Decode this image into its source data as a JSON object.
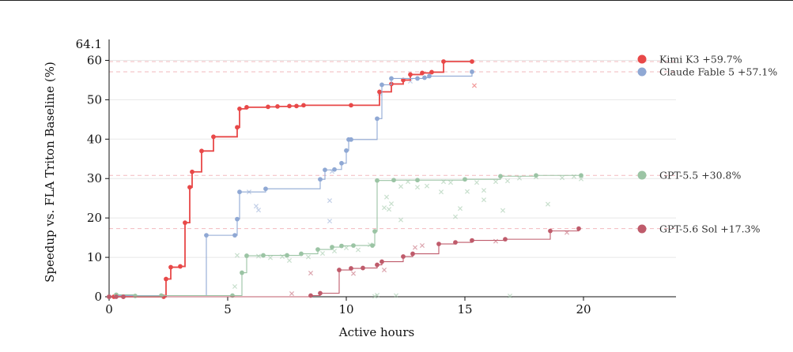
{
  "chart_data": {
    "type": "line",
    "xlabel": "Active hours",
    "ylabel": "Speedup vs. FLA Triton Baseline (%)",
    "xlim": [
      0,
      23.9
    ],
    "ylim": [
      0,
      64.1
    ],
    "ymax_label": "64.1",
    "x_ticks": [
      0,
      5,
      10,
      15,
      20
    ],
    "y_ticks": [
      0,
      10,
      20,
      30,
      40,
      50,
      60
    ],
    "grid": "horizontal",
    "legend_placement": "right",
    "series": [
      {
        "name": "Kimi K3",
        "label": "Kimi K3 +59.7%",
        "final": 59.7,
        "color": "#e84848",
        "line_width": 1.8,
        "steps": [
          [
            0,
            0
          ],
          [
            0.2,
            0
          ],
          [
            0.6,
            0
          ],
          [
            2.3,
            0
          ],
          [
            2.4,
            4.5
          ],
          [
            2.6,
            7.5
          ],
          [
            3.0,
            7.7
          ],
          [
            3.2,
            18.8
          ],
          [
            3.4,
            27.8
          ],
          [
            3.5,
            31.7
          ],
          [
            3.9,
            37.0
          ],
          [
            4.4,
            40.6
          ],
          [
            5.4,
            43.0
          ],
          [
            5.5,
            47.7
          ],
          [
            5.8,
            48.1
          ],
          [
            6.7,
            48.2
          ],
          [
            7.1,
            48.3
          ],
          [
            7.6,
            48.4
          ],
          [
            7.9,
            48.4
          ],
          [
            8.2,
            48.6
          ],
          [
            10.2,
            48.6
          ],
          [
            11.4,
            52.0
          ],
          [
            11.9,
            54.0
          ],
          [
            12.4,
            55.0
          ],
          [
            12.7,
            56.4
          ],
          [
            13.2,
            56.8
          ],
          [
            13.6,
            57.0
          ],
          [
            14.1,
            59.7
          ],
          [
            15.3,
            59.7
          ]
        ],
        "trials": [
          [
            15.4,
            53.6
          ]
        ]
      },
      {
        "name": "Claude Fable 5",
        "label": "Claude Fable 5 +57.1%",
        "final": 57.1,
        "color": "#8fa8d4",
        "line_width": 1.1,
        "steps": [
          [
            0,
            0
          ],
          [
            0.3,
            0.3
          ],
          [
            4.1,
            15.6
          ],
          [
            5.3,
            15.6
          ],
          [
            5.4,
            19.7
          ],
          [
            5.5,
            26.6
          ],
          [
            6.6,
            27.4
          ],
          [
            8.9,
            29.8
          ],
          [
            9.1,
            32.2
          ],
          [
            9.5,
            32.3
          ],
          [
            9.8,
            33.9
          ],
          [
            10.0,
            37.1
          ],
          [
            10.1,
            39.9
          ],
          [
            10.2,
            39.9
          ],
          [
            11.3,
            45.2
          ],
          [
            11.5,
            53.8
          ],
          [
            11.9,
            55.4
          ],
          [
            13.0,
            55.4
          ],
          [
            13.3,
            55.6
          ],
          [
            13.5,
            56.0
          ],
          [
            15.3,
            57.1
          ]
        ],
        "trials": [
          [
            5.9,
            26.6
          ],
          [
            6.2,
            23.0
          ],
          [
            6.3,
            22.0
          ],
          [
            9.4,
            31.8
          ],
          [
            9.3,
            24.4
          ],
          [
            9.3,
            19.2
          ],
          [
            12.7,
            54.7
          ],
          [
            11.4,
            51.6
          ]
        ]
      },
      {
        "name": "GPT-5.5",
        "label": "GPT-5.5 +30.8%",
        "final": 30.8,
        "color": "#9bc4a4",
        "line_width": 1.1,
        "steps": [
          [
            0,
            0
          ],
          [
            0.3,
            0.5
          ],
          [
            1.1,
            0.2
          ],
          [
            2.2,
            0.3
          ],
          [
            5.2,
            0.3
          ],
          [
            5.6,
            6.1
          ],
          [
            5.8,
            10.4
          ],
          [
            6.5,
            10.5
          ],
          [
            7.5,
            10.5
          ],
          [
            8.1,
            10.9
          ],
          [
            8.8,
            12.0
          ],
          [
            9.4,
            12.6
          ],
          [
            9.8,
            12.9
          ],
          [
            10.3,
            13.0
          ],
          [
            11.1,
            13.0
          ],
          [
            11.2,
            16.6
          ],
          [
            11.3,
            29.5
          ],
          [
            12.0,
            29.6
          ],
          [
            13.0,
            29.6
          ],
          [
            15.0,
            29.8
          ],
          [
            16.5,
            30.6
          ],
          [
            18.0,
            30.8
          ],
          [
            19.9,
            30.8
          ]
        ],
        "trials": [
          [
            5.4,
            10.5
          ],
          [
            5.3,
            2.6
          ],
          [
            6.3,
            10.3
          ],
          [
            6.8,
            9.9
          ],
          [
            7.3,
            10.2
          ],
          [
            7.6,
            9.2
          ],
          [
            8.4,
            10.1
          ],
          [
            9.0,
            11.0
          ],
          [
            9.5,
            11.6
          ],
          [
            10.0,
            12.4
          ],
          [
            10.5,
            11.9
          ],
          [
            11.0,
            13.2
          ],
          [
            11.6,
            22.6
          ],
          [
            11.8,
            22.2
          ],
          [
            11.9,
            23.6
          ],
          [
            11.7,
            25.3
          ],
          [
            12.3,
            28.0
          ],
          [
            12.3,
            19.5
          ],
          [
            12.6,
            29.2
          ],
          [
            13.0,
            27.8
          ],
          [
            13.4,
            28.1
          ],
          [
            14.0,
            26.6
          ],
          [
            14.1,
            29.2
          ],
          [
            14.4,
            29.0
          ],
          [
            14.6,
            20.3
          ],
          [
            14.8,
            22.4
          ],
          [
            15.1,
            26.7
          ],
          [
            15.5,
            29.0
          ],
          [
            15.8,
            27.0
          ],
          [
            16.3,
            29.2
          ],
          [
            15.8,
            24.6
          ],
          [
            16.6,
            21.9
          ],
          [
            16.8,
            29.4
          ],
          [
            17.3,
            30.1
          ],
          [
            18.5,
            23.5
          ],
          [
            18.0,
            30.4
          ],
          [
            19.1,
            30.2
          ],
          [
            19.6,
            30.5
          ],
          [
            19.9,
            29.9
          ],
          [
            11.2,
            0.1
          ],
          [
            11.3,
            0.4
          ],
          [
            12.1,
            0.3
          ],
          [
            16.9,
            0.2
          ]
        ]
      },
      {
        "name": "GPT-5.6 Sol",
        "label": "GPT-5.6 Sol +17.3%",
        "final": 17.3,
        "color": "#bf5b6b",
        "line_width": 1.1,
        "steps": [
          [
            0,
            0
          ],
          [
            0.3,
            0
          ],
          [
            0.6,
            0
          ],
          [
            8.5,
            0.3
          ],
          [
            8.9,
            0.9
          ],
          [
            9.7,
            6.8
          ],
          [
            10.2,
            7.2
          ],
          [
            10.7,
            7.3
          ],
          [
            11.3,
            8.1
          ],
          [
            11.5,
            8.9
          ],
          [
            12.4,
            10.2
          ],
          [
            12.8,
            10.9
          ],
          [
            13.9,
            13.4
          ],
          [
            14.6,
            13.8
          ],
          [
            15.3,
            14.3
          ],
          [
            16.7,
            14.6
          ],
          [
            18.6,
            16.7
          ],
          [
            19.8,
            17.3
          ]
        ],
        "trials": [
          [
            7.7,
            0.8
          ],
          [
            8.5,
            6.0
          ],
          [
            10.3,
            5.9
          ],
          [
            11.6,
            6.8
          ],
          [
            12.9,
            12.5
          ],
          [
            13.2,
            13.0
          ],
          [
            16.3,
            14.1
          ],
          [
            19.3,
            16.3
          ]
        ]
      }
    ]
  }
}
